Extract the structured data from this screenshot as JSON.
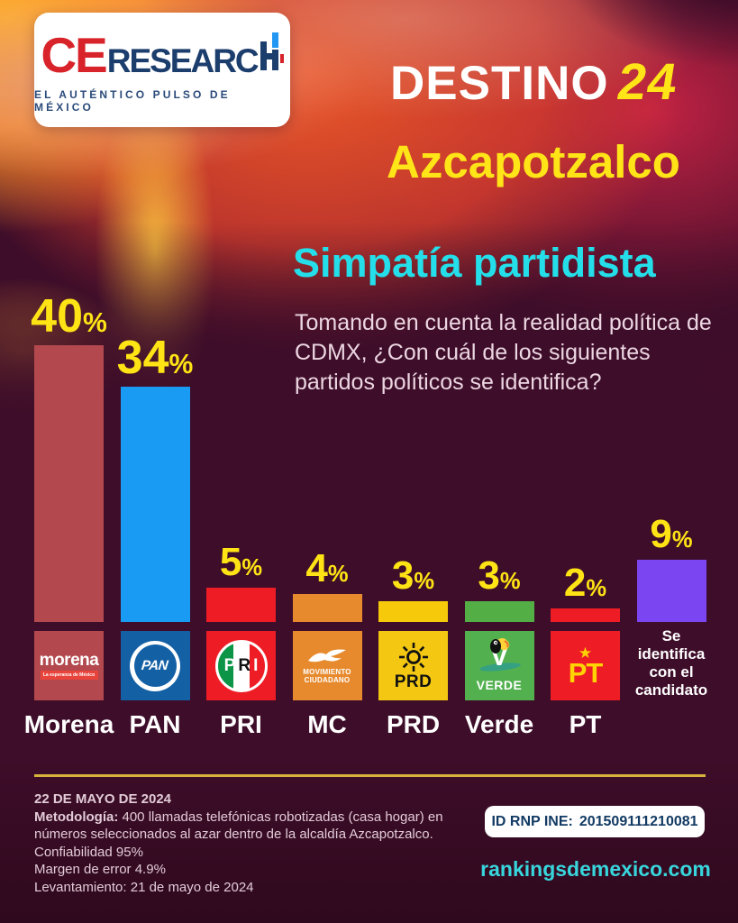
{
  "brand": {
    "logo_ce": "CE",
    "logo_research": "RESEARC",
    "tagline": "EL AUTÉNTICO PULSO DE MÉXICO"
  },
  "header": {
    "title_main": "DESTINO",
    "title_year": "24",
    "subtitle": "Azcapotzalco"
  },
  "section": {
    "heading": "Simpatía partidista",
    "question": "Tomando en cuenta la realidad política de CDMX, ¿Con cuál de los siguientes partidos políticos se identifica?"
  },
  "chart_data": {
    "type": "bar",
    "title": "Simpatía partidista",
    "categories": [
      "Morena",
      "PAN",
      "PRI",
      "MC",
      "PRD",
      "Verde",
      "PT",
      "Se identifica con el candidato"
    ],
    "values": [
      40,
      34,
      5,
      4,
      3,
      3,
      2,
      9
    ],
    "value_suffix": "%",
    "bar_colors": [
      "#b3494e",
      "#199bf3",
      "#ee1c25",
      "#e78a2e",
      "#f6c90a",
      "#53ae46",
      "#ee1c25",
      "#7c45f2"
    ],
    "value_label_color": "#ffe415",
    "orientation": "vertical",
    "notes": "value labels above bars, party logos below bars"
  },
  "parties": [
    {
      "label": "Morena",
      "logo_bg": "#b3494e",
      "logo_text": "morena",
      "logo_tagline": "La esperanza de México"
    },
    {
      "label": "PAN",
      "logo_bg": "#1460a5",
      "logo_text": "PAN"
    },
    {
      "label": "PRI",
      "logo_bg": "#ee1c25",
      "logo_letters": [
        "P",
        "R",
        "I"
      ]
    },
    {
      "label": "MC",
      "logo_bg": "#e78a2e",
      "logo_lines": [
        "MOVIMIENTO",
        "CIUDADANO"
      ]
    },
    {
      "label": "PRD",
      "logo_bg": "#f3c712",
      "logo_text": "PRD"
    },
    {
      "label": "Verde",
      "logo_bg": "#52b14e",
      "logo_text": "VERDE",
      "logo_v": "V"
    },
    {
      "label": "PT",
      "logo_bg": "#ee1c25",
      "logo_text": "PT",
      "logo_star": "★"
    },
    {
      "label_lines": [
        "Se",
        "identifica",
        "con el",
        "candidato"
      ]
    }
  ],
  "footer": {
    "date": "22 DE MAYO DE 2024",
    "methodology_label": "Metodología:",
    "methodology_text": " 400 llamadas telefónicas robotizadas (casa hogar) en números seleccionados al azar dentro de la alcaldía Azcapotzalco.",
    "confidence": "Confiabilidad 95%",
    "margin_error": "Margen de error 4.9%",
    "fieldwork": "Levantamiento: 21 de mayo de 2024",
    "badge_label": "ID RNP INE:",
    "badge_value": "201509111210081",
    "website": "rankingsdemexico.com"
  }
}
